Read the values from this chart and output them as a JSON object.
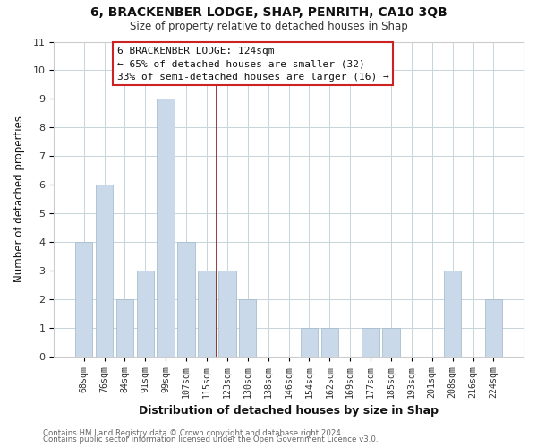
{
  "title": "6, BRACKENBER LODGE, SHAP, PENRITH, CA10 3QB",
  "subtitle": "Size of property relative to detached houses in Shap",
  "xlabel": "Distribution of detached houses by size in Shap",
  "ylabel": "Number of detached properties",
  "bar_labels": [
    "68sqm",
    "76sqm",
    "84sqm",
    "91sqm",
    "99sqm",
    "107sqm",
    "115sqm",
    "123sqm",
    "130sqm",
    "138sqm",
    "146sqm",
    "154sqm",
    "162sqm",
    "169sqm",
    "177sqm",
    "185sqm",
    "193sqm",
    "201sqm",
    "208sqm",
    "216sqm",
    "224sqm"
  ],
  "bar_values": [
    4,
    6,
    2,
    3,
    9,
    4,
    3,
    3,
    2,
    0,
    0,
    1,
    1,
    0,
    1,
    1,
    0,
    0,
    3,
    0,
    2
  ],
  "bar_color": "#c9d9ea",
  "bar_edge_color": "#a8bece",
  "vline_index": 7,
  "vline_color": "#8b1a1a",
  "ylim": [
    0,
    11
  ],
  "yticks": [
    0,
    1,
    2,
    3,
    4,
    5,
    6,
    7,
    8,
    9,
    10,
    11
  ],
  "annotation_title": "6 BRACKENBER LODGE: 124sqm",
  "annotation_line1": "← 65% of detached houses are smaller (32)",
  "annotation_line2": "33% of semi-detached houses are larger (16) →",
  "annotation_box_facecolor": "#ffffff",
  "annotation_box_edgecolor": "#cc2222",
  "footer_line1": "Contains HM Land Registry data © Crown copyright and database right 2024.",
  "footer_line2": "Contains public sector information licensed under the Open Government Licence v3.0.",
  "grid_color": "#c8d4dc",
  "background_color": "#ffffff"
}
